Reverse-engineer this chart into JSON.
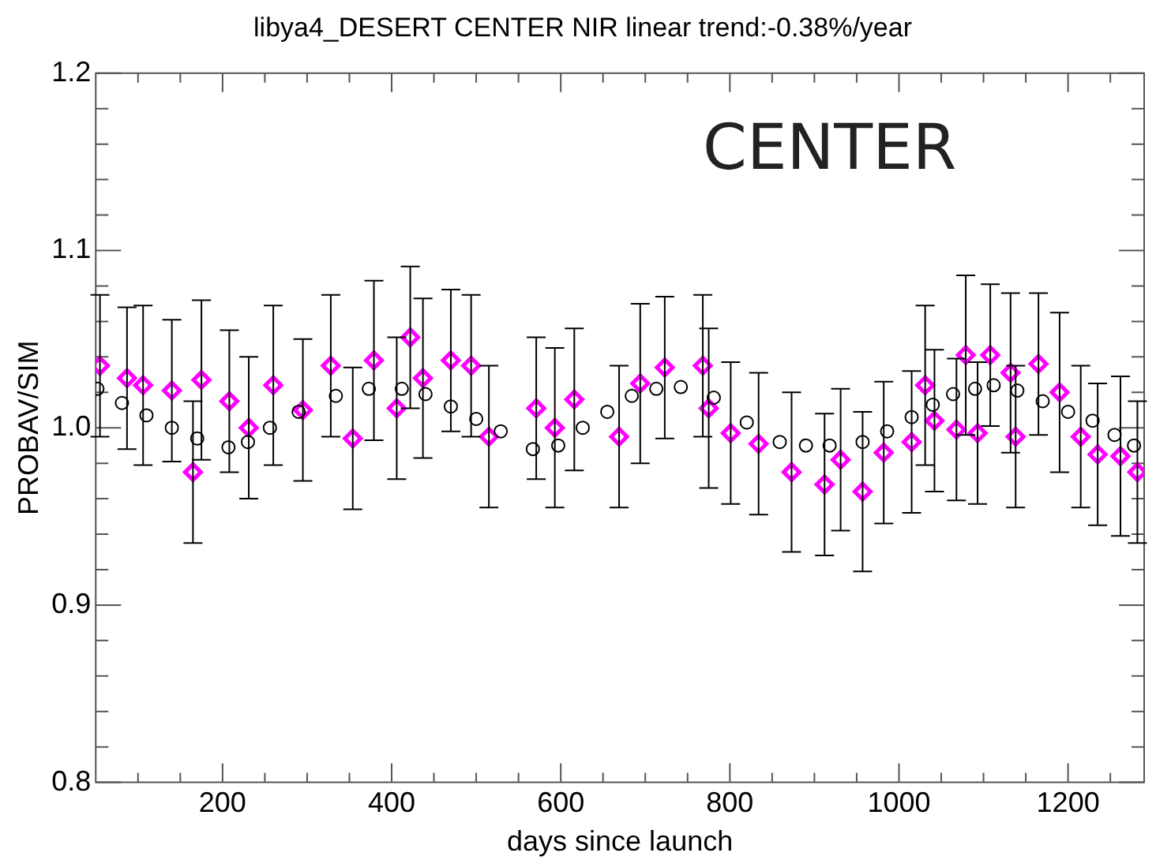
{
  "chart_data": {
    "type": "scatter",
    "title": "libya4_DESERT CENTER NIR linear trend:-0.38%/year",
    "xlabel": "days since launch",
    "ylabel": "PROBAV/SIM",
    "annotations": [
      "CENTER"
    ],
    "xlim": [
      50,
      1290
    ],
    "ylim": [
      0.8,
      1.2
    ],
    "xticks": [
      {
        "value": 100,
        "label": null
      },
      {
        "value": 150,
        "label": null
      },
      200,
      {
        "value": 250,
        "label": null
      },
      {
        "value": 300,
        "label": null
      },
      {
        "value": 350,
        "label": null
      },
      400,
      {
        "value": 450,
        "label": null
      },
      {
        "value": 500,
        "label": null
      },
      {
        "value": 550,
        "label": null
      },
      600,
      {
        "value": 650,
        "label": null
      },
      {
        "value": 700,
        "label": null
      },
      {
        "value": 750,
        "label": null
      },
      800,
      {
        "value": 850,
        "label": null
      },
      {
        "value": 900,
        "label": null
      },
      {
        "value": 950,
        "label": null
      },
      1000,
      {
        "value": 1050,
        "label": null
      },
      {
        "value": 1100,
        "label": null
      },
      {
        "value": 1150,
        "label": null
      },
      1200,
      {
        "value": 1250,
        "label": null
      }
    ],
    "yticks": [
      0.8,
      {
        "value": 0.82,
        "label": null
      },
      {
        "value": 0.84,
        "label": null
      },
      {
        "value": 0.86,
        "label": null
      },
      {
        "value": 0.88,
        "label": null
      },
      0.9,
      {
        "value": 0.92,
        "label": null
      },
      {
        "value": 0.94,
        "label": null
      },
      {
        "value": 0.96,
        "label": null
      },
      {
        "value": 0.98,
        "label": null
      },
      {
        "value": 1,
        "label": "1.0"
      },
      {
        "value": 1.02,
        "label": null
      },
      {
        "value": 1.04,
        "label": null
      },
      {
        "value": 1.06,
        "label": null
      },
      {
        "value": 1.08,
        "label": null
      },
      1.1,
      {
        "value": 1.12,
        "label": null
      },
      {
        "value": 1.14,
        "label": null
      },
      {
        "value": 1.16,
        "label": null
      },
      {
        "value": 1.18,
        "label": null
      },
      1.2
    ],
    "grid": false,
    "legend": false,
    "series": [
      {
        "marker": "circle",
        "color": "#000000",
        "x": [
          52,
          81,
          110,
          140,
          170,
          207,
          230,
          256,
          290,
          334,
          373,
          412,
          440,
          470,
          500,
          529,
          567,
          597,
          626,
          655,
          684,
          713,
          742,
          781,
          820,
          859,
          890,
          918,
          957,
          986,
          1015,
          1040,
          1064,
          1090,
          1112,
          1140,
          1170,
          1200,
          1229,
          1255,
          1278
        ],
        "values": [
          1.022,
          1.014,
          1.007,
          1.0,
          0.994,
          0.989,
          0.992,
          1.0,
          1.009,
          1.018,
          1.022,
          1.022,
          1.019,
          1.012,
          1.005,
          0.998,
          0.988,
          0.99,
          1.0,
          1.009,
          1.018,
          1.022,
          1.023,
          1.017,
          1.003,
          0.992,
          0.99,
          0.99,
          0.992,
          0.998,
          1.006,
          1.013,
          1.019,
          1.022,
          1.024,
          1.021,
          1.015,
          1.009,
          1.004,
          0.996,
          0.99
        ]
      },
      {
        "marker": "diamond",
        "color": "#ff00ff",
        "x": [
          55,
          87,
          106,
          140,
          165,
          175,
          208,
          231,
          260,
          295,
          328,
          354,
          379,
          406,
          422,
          437,
          470,
          494,
          515,
          571,
          593,
          616,
          669,
          694,
          723,
          768,
          775,
          801,
          834,
          873,
          912,
          931,
          957,
          982,
          1015,
          1031,
          1042,
          1068,
          1079,
          1093,
          1108,
          1132,
          1138,
          1165,
          1190,
          1215,
          1235,
          1262,
          1282
        ],
        "values": [
          1.035,
          1.028,
          1.024,
          1.021,
          0.975,
          1.027,
          1.015,
          1.0,
          1.024,
          1.01,
          1.035,
          0.994,
          1.038,
          1.011,
          1.051,
          1.028,
          1.038,
          1.035,
          0.995,
          1.011,
          1.0,
          1.016,
          0.995,
          1.025,
          1.034,
          1.035,
          1.011,
          0.997,
          0.991,
          0.975,
          0.968,
          0.982,
          0.964,
          0.986,
          0.992,
          1.024,
          1.004,
          0.999,
          1.041,
          0.997,
          1.041,
          1.031,
          0.995,
          1.036,
          1.02,
          0.995,
          0.985,
          0.984,
          0.975
        ],
        "errors": [
          0.04,
          0.04,
          0.045,
          0.04,
          0.04,
          0.045,
          0.04,
          0.04,
          0.045,
          0.04,
          0.04,
          0.04,
          0.045,
          0.04,
          0.04,
          0.045,
          0.04,
          0.04,
          0.04,
          0.04,
          0.045,
          0.04,
          0.04,
          0.045,
          0.04,
          0.04,
          0.045,
          0.04,
          0.04,
          0.045,
          0.04,
          0.04,
          0.045,
          0.04,
          0.04,
          0.045,
          0.04,
          0.04,
          0.045,
          0.04,
          0.04,
          0.045,
          0.04,
          0.04,
          0.045,
          0.04,
          0.04,
          0.045,
          0.04
        ]
      }
    ]
  }
}
